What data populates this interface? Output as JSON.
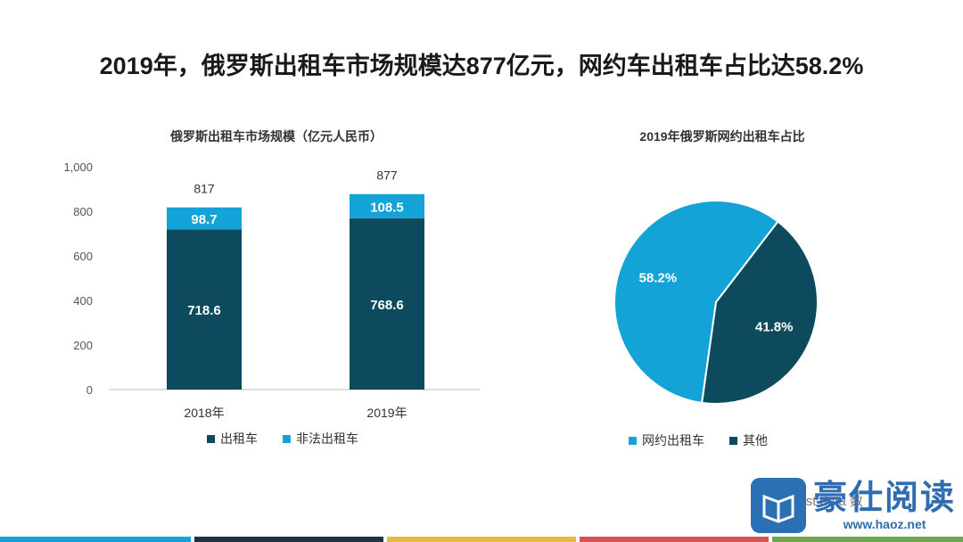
{
  "title": "2019年，俄罗斯出租车市场规模达877亿元，网约车出租车占比达58.2%",
  "colors": {
    "dark": "#0e4a5e",
    "light": "#14a3d6",
    "stripes": [
      "#14a3d6",
      "#1f3345",
      "#e8b93b",
      "#d9534f",
      "#6aa84f"
    ]
  },
  "bar_chart": {
    "title": "俄罗斯出租车市场规模（亿元人民币）",
    "legend": [
      {
        "label": "出租车",
        "color": "#0e4a5e"
      },
      {
        "label": "非法出租车",
        "color": "#14a3d6"
      }
    ]
  },
  "pie_chart": {
    "title": "2019年俄罗斯网约出租车占比",
    "legend": [
      {
        "label": "网约出租车",
        "color": "#14a3d6"
      },
      {
        "label": "其他",
        "color": "#0e4a5e"
      }
    ]
  },
  "chart_data": [
    {
      "type": "bar",
      "stacked": true,
      "title": "俄罗斯出租车市场规模（亿元人民币）",
      "categories": [
        "2018年",
        "2019年"
      ],
      "series": [
        {
          "name": "出租车",
          "values": [
            718.6,
            768.6
          ],
          "labels": [
            "718.6",
            "768.6"
          ]
        },
        {
          "name": "非法出租车",
          "values": [
            98.7,
            108.5
          ],
          "labels": [
            "98.7",
            "108.5"
          ]
        }
      ],
      "totals": [
        "817",
        "877"
      ],
      "ylim": [
        0,
        1000
      ],
      "yticks": [
        0,
        200,
        400,
        600,
        800,
        1000
      ],
      "ytick_labels": [
        "0",
        "200",
        "400",
        "600",
        "800",
        "1,000"
      ],
      "legend_position": "bottom"
    },
    {
      "type": "pie",
      "title": "2019年俄罗斯网约出租车占比",
      "slices": [
        {
          "name": "网约出租车",
          "value": 58.2,
          "label": "58.2%"
        },
        {
          "name": "其他",
          "value": 41.8,
          "label": "41.8%"
        }
      ],
      "legend_position": "bottom"
    }
  ],
  "watermark": {
    "name": "豪仕阅读",
    "url": "www.haoz.net",
    "source": "Frost data 数"
  }
}
